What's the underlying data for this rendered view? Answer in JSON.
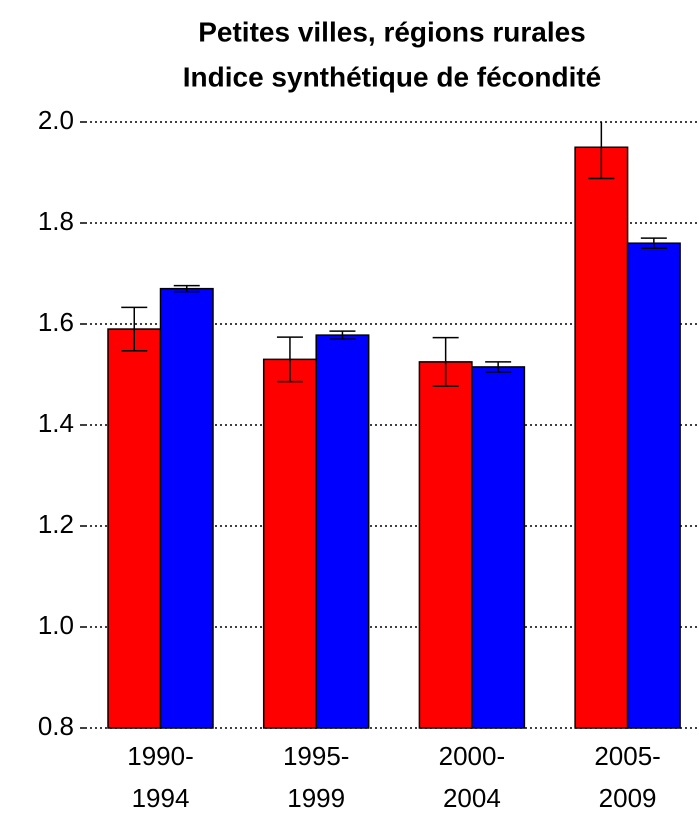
{
  "chart_data": {
    "type": "bar",
    "title": [
      "Petites villes, régions rurales",
      "Indice synthétique de fécondité"
    ],
    "categories": [
      [
        "1990-",
        "1994"
      ],
      [
        "1995-",
        "1999"
      ],
      [
        "2000-",
        "2004"
      ],
      [
        "2005-",
        "2009"
      ]
    ],
    "series": [
      {
        "color": "#ff0000",
        "values": [
          1.59,
          1.53,
          1.525,
          1.95
        ],
        "errors": [
          0.043,
          0.044,
          0.048,
          0.062
        ]
      },
      {
        "color": "#0000ff",
        "values": [
          1.67,
          1.578,
          1.515,
          1.76
        ],
        "errors": [
          0.006,
          0.008,
          0.01,
          0.01
        ]
      }
    ],
    "ylim": [
      0.8,
      2.0
    ],
    "yticks": [
      0.8,
      {
        "value": 1,
        "label": "1.0"
      },
      1.2,
      1.4,
      1.6,
      1.8,
      {
        "value": 2,
        "label": "2.0"
      }
    ],
    "grid": true
  }
}
